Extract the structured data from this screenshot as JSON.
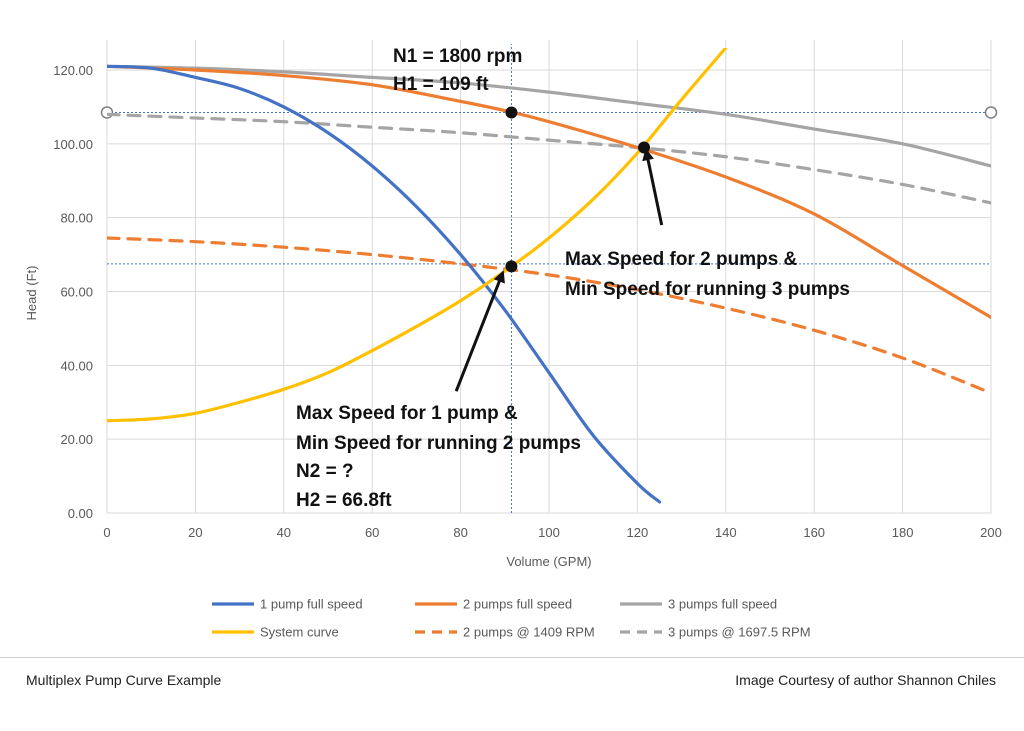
{
  "chart_data": {
    "type": "line",
    "xlabel": "Volume (GPM)",
    "ylabel": "Head (Ft)",
    "xlim": [
      0,
      200
    ],
    "ylim": [
      0,
      120
    ],
    "x_ticks": [
      0,
      20,
      40,
      60,
      80,
      100,
      120,
      140,
      160,
      180,
      200
    ],
    "x_tick_labels": [
      "0",
      "20",
      "40",
      "60",
      "80",
      "100",
      "120",
      "140",
      "160",
      "180",
      "200"
    ],
    "y_ticks": [
      0,
      20,
      40,
      60,
      80,
      100,
      120
    ],
    "y_tick_labels": [
      "0.00",
      "20.00",
      "40.00",
      "60.00",
      "80.00",
      "100.00",
      "120.00"
    ],
    "grid": true,
    "legend_position": "bottom",
    "colors": {
      "blue": "#4472C4",
      "orange": "#ED7D31",
      "gray": "#A5A5A5",
      "yellow": "#FFC000",
      "grid": "#d9d9d9",
      "refline": "#4472C4"
    },
    "series": [
      {
        "name": "1 pump full speed",
        "color": "#4472C4",
        "dash": false,
        "x": [
          0,
          10,
          20,
          30,
          40,
          50,
          60,
          70,
          80,
          90,
          100,
          110,
          120,
          125
        ],
        "y": [
          121,
          120.5,
          118,
          115,
          110,
          103,
          94,
          83,
          70,
          55,
          38,
          21,
          8,
          3
        ]
      },
      {
        "name": "2 pumps full speed",
        "color": "#ED7D31",
        "dash": false,
        "x": [
          0,
          20,
          40,
          60,
          80,
          90,
          100,
          120,
          140,
          160,
          180,
          200
        ],
        "y": [
          121,
          120,
          118.5,
          116,
          111.5,
          109,
          106,
          99,
          91,
          81,
          67,
          53
        ]
      },
      {
        "name": "3 pumps full speed",
        "color": "#A5A5A5",
        "dash": false,
        "x": [
          0,
          20,
          40,
          60,
          80,
          100,
          120,
          140,
          160,
          180,
          200
        ],
        "y": [
          121,
          120.5,
          119.5,
          118,
          116.5,
          114,
          111,
          108,
          104,
          100,
          94
        ]
      },
      {
        "name": "System curve",
        "color": "#FFC000",
        "dash": false,
        "x": [
          0,
          10,
          20,
          30,
          40,
          50,
          60,
          70,
          80,
          90,
          100,
          110,
          120,
          130,
          140
        ],
        "y": [
          25,
          25.5,
          27,
          30,
          33.5,
          38,
          44,
          50.5,
          57.5,
          65.5,
          74.5,
          85,
          97.5,
          112,
          126
        ]
      },
      {
        "name": "2 pumps @ 1409 RPM",
        "color": "#ED7D31",
        "dash": true,
        "x": [
          0,
          20,
          40,
          60,
          80,
          100,
          120,
          140,
          160,
          180,
          200
        ],
        "y": [
          74.5,
          73.5,
          72,
          70,
          67.5,
          64.5,
          60.5,
          55.5,
          49.5,
          42,
          32.5
        ]
      },
      {
        "name": "3 pumps @ 1697.5 RPM",
        "color": "#A5A5A5",
        "dash": true,
        "x": [
          0,
          20,
          40,
          60,
          80,
          100,
          120,
          140,
          160,
          180,
          200
        ],
        "y": [
          108,
          107,
          106,
          104.5,
          103,
          101,
          99,
          96.5,
          93,
          89,
          84
        ]
      }
    ],
    "reference_lines": [
      {
        "orientation": "horizontal",
        "y": 108.5,
        "x_from": 0,
        "x_to": 200
      },
      {
        "orientation": "horizontal",
        "y": 67.5,
        "x_from": 0,
        "x_to": 200
      },
      {
        "orientation": "vertical",
        "x": 91.5,
        "y_from": 0,
        "y_to": 127
      }
    ],
    "markers": [
      {
        "x": 91.5,
        "y": 108.5
      },
      {
        "x": 121.5,
        "y": 99
      },
      {
        "x": 91.5,
        "y": 66.8
      }
    ],
    "annotations": {
      "top_line1": "N1 = 1800 rpm",
      "top_line2": "H1 = 109 ft",
      "right_line1": "Max Speed for 2 pumps &",
      "right_line2": "Min Speed for running 3 pumps",
      "bottom_line1": "Max Speed for 1 pump &",
      "bottom_line2": "Min Speed for running 2 pumps",
      "bottom_line3": "N2 = ?",
      "bottom_line4": "H2 = 66.8ft"
    },
    "arrows": [
      {
        "from": [
          125.5,
          78
        ],
        "to": [
          122,
          98
        ]
      },
      {
        "from": [
          79,
          33
        ],
        "to": [
          89.5,
          65
        ]
      }
    ]
  },
  "caption": {
    "left": "Multiplex Pump Curve Example",
    "right": "Image Courtesy of author Shannon Chiles"
  }
}
